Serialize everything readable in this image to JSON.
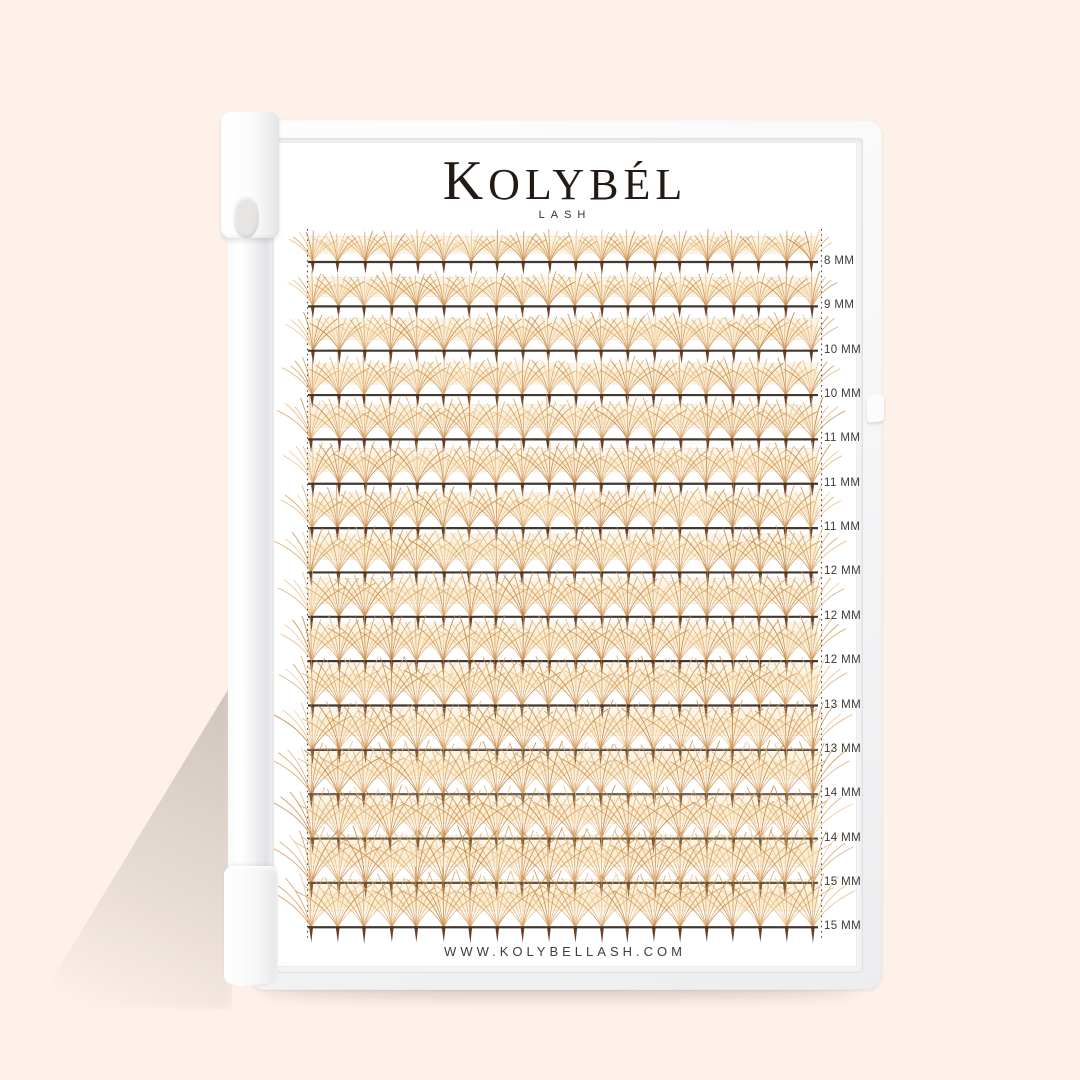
{
  "product": {
    "brand": "KOLYBÉL",
    "brand_subtitle": "LASH",
    "website": "WWW.KOLYBELLASH.COM"
  },
  "tray": {
    "rows": [
      {
        "label": "8 MM"
      },
      {
        "label": "9 MM"
      },
      {
        "label": "10 MM"
      },
      {
        "label": "10 MM"
      },
      {
        "label": "11 MM"
      },
      {
        "label": "11 MM"
      },
      {
        "label": "11 MM"
      },
      {
        "label": "12 MM"
      },
      {
        "label": "12 MM"
      },
      {
        "label": "12 MM"
      },
      {
        "label": "13 MM"
      },
      {
        "label": "13 MM"
      },
      {
        "label": "14 MM"
      },
      {
        "label": "14 MM"
      },
      {
        "label": "15 MM"
      },
      {
        "label": "15 MM"
      }
    ]
  },
  "colors": {
    "background": "#fdf1ea",
    "tray_white": "#f7f7f8",
    "card_white": "#ffffff",
    "strip_line": "#32281f",
    "lash_base_brown": "#5a3018",
    "lash_palette": [
      "#d79a52",
      "#cd8c44",
      "#e2ae6d",
      "#c07f39",
      "#e8bd82"
    ],
    "glow_amber": "#f2c678",
    "tape_edge": "#d8d2c9",
    "dotted_line": "#4a4a4a",
    "brand_text": "#241a15",
    "label_text": "#3e3a37"
  }
}
